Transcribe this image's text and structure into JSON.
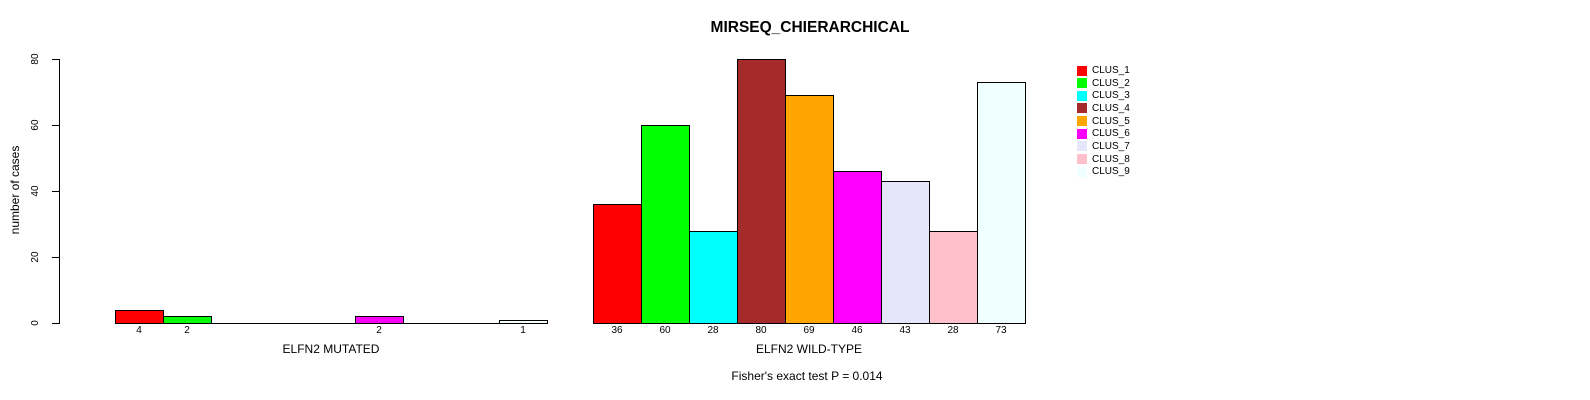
{
  "chart_data": {
    "type": "bar",
    "title": "MIRSEQ_CHIERARCHICAL",
    "ylabel": "number of cases",
    "xlabel": "",
    "ylim": [
      0,
      80
    ],
    "yticks": [
      0,
      20,
      40,
      60,
      80
    ],
    "grid": false,
    "legend_position": "right-outside",
    "categories": [
      "CLUS_1",
      "CLUS_2",
      "CLUS_3",
      "CLUS_4",
      "CLUS_5",
      "CLUS_6",
      "CLUS_7",
      "CLUS_8",
      "CLUS_9"
    ],
    "colors": [
      "#FF0000",
      "#00FF00",
      "#00FFFF",
      "#A52A2A",
      "#FFA500",
      "#FF00FF",
      "#E6E6FA",
      "#FFC0CB",
      "#F0FFFF"
    ],
    "bar_border_color": "#000000",
    "axis_color": "#000000",
    "groups": [
      {
        "label": "ELFN2 MUTATED",
        "values": [
          4,
          2,
          0,
          0,
          0,
          2,
          0,
          0,
          1
        ]
      },
      {
        "label": "ELFN2 WILD-TYPE",
        "values": [
          36,
          60,
          28,
          80,
          69,
          46,
          43,
          28,
          73
        ]
      }
    ],
    "bar_label_rule": "labels shown only for non-zero bars",
    "annotation": "Fisher's exact test P = 0.014"
  }
}
